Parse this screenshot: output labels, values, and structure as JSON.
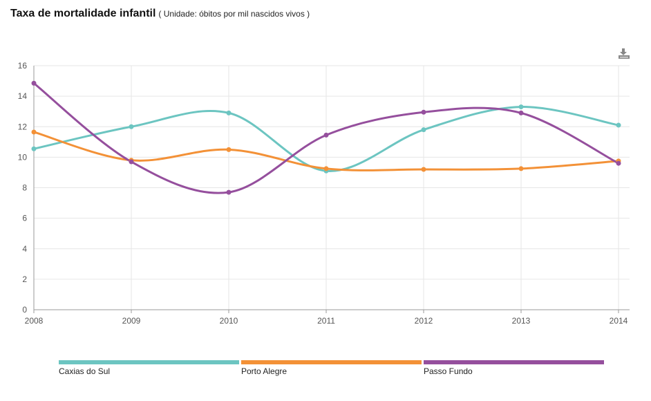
{
  "header": {
    "title": "Taxa de mortalidade infantil",
    "subtitle": "( Unidade: óbitos por mil nascidos vivos )"
  },
  "toolbar": {
    "download_icon": "download-icon"
  },
  "chart_data": {
    "type": "line",
    "title": "Taxa de mortalidade infantil",
    "subtitle": "( Unidade: óbitos por mil nascidos vivos )",
    "x": [
      "2008",
      "2009",
      "2010",
      "2011",
      "2012",
      "2013",
      "2014"
    ],
    "ylim": [
      0,
      16
    ],
    "yticks": [
      "0",
      "2",
      "4",
      "6",
      "8",
      "10",
      "12",
      "14",
      "16"
    ],
    "grid": true,
    "legend_position": "bottom",
    "series": [
      {
        "name": "Caxias do Sul",
        "color": "#6cc5c1",
        "values": [
          10.55,
          12.0,
          12.9,
          9.1,
          11.8,
          13.3,
          12.1
        ]
      },
      {
        "name": "Porto Alegre",
        "color": "#f39137",
        "values": [
          11.65,
          9.8,
          10.5,
          9.25,
          9.2,
          9.25,
          9.75
        ]
      },
      {
        "name": "Passo Fundo",
        "color": "#954f9d",
        "values": [
          14.85,
          9.7,
          7.7,
          11.45,
          12.95,
          12.9,
          9.6
        ]
      }
    ]
  }
}
